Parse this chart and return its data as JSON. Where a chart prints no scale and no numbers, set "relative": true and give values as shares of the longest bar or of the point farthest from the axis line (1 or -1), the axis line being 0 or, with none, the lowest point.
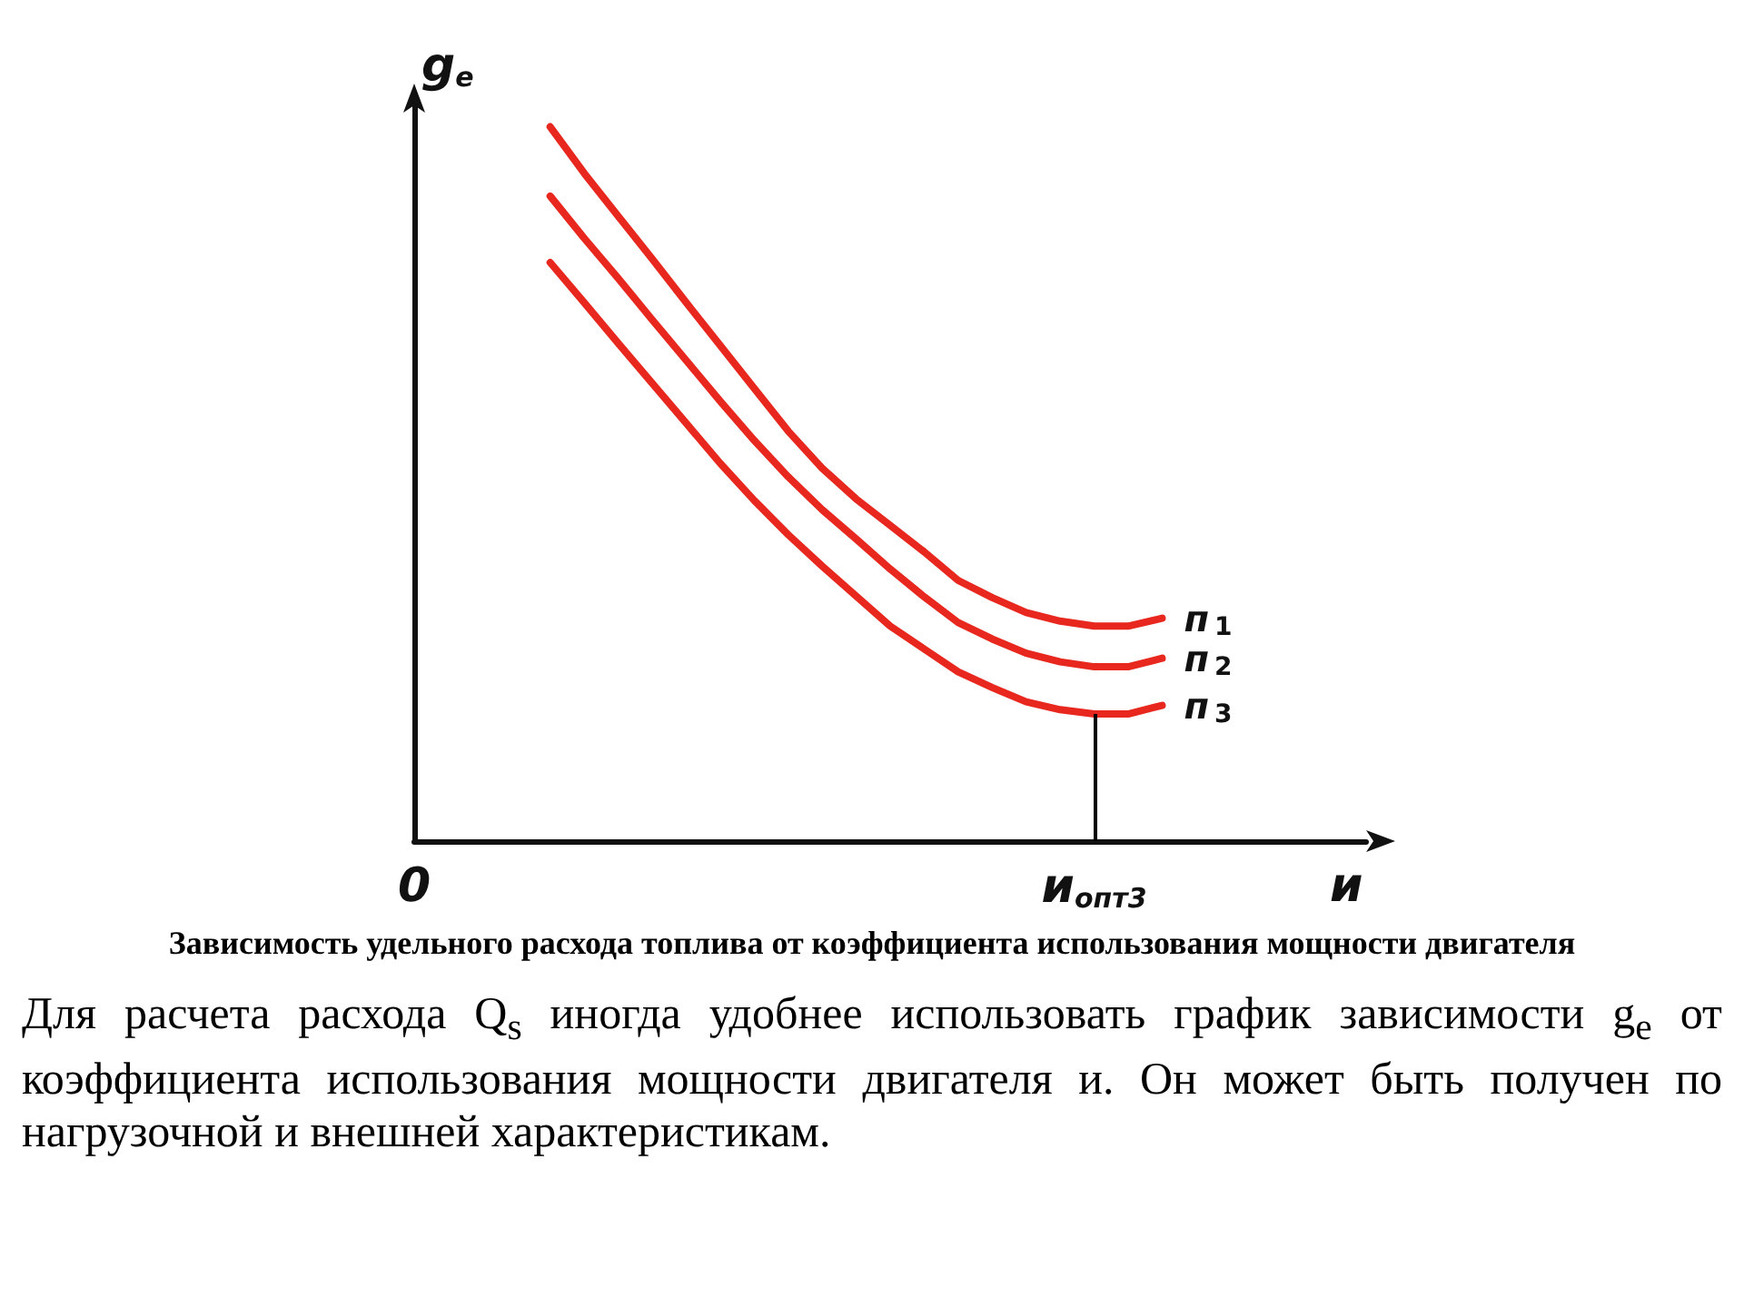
{
  "chart_data": {
    "type": "line",
    "relative": true,
    "title": "Зависимость удельного расхода топлива от коэффициента использования мощности двигателя",
    "xlabel": "и",
    "ylabel": "g$_{e}$",
    "categories": [
      "0",
      null,
      null,
      null,
      null,
      null,
      null,
      null,
      null,
      null,
      null,
      null,
      null,
      null,
      null,
      null,
      null,
      null,
      null,
      null,
      "и$_{опт3}$",
      null,
      null,
      null,
      null,
      null,
      null,
      null,
      null
    ],
    "series": [
      {
        "name": "п$_{1}$",
        "color": "#e8281e",
        "values": [
          null,
          null,
          null,
          null,
          1,
          0.935,
          0.875,
          0.815,
          0.754,
          0.694,
          0.634,
          0.574,
          0.522,
          0.479,
          0.442,
          0.405,
          0.365,
          0.341,
          0.32,
          0.308,
          0.301,
          0.301,
          0.312,
          null,
          null,
          null,
          null,
          null,
          null
        ]
      },
      {
        "name": "п$_{2}$",
        "color": "#e8281e",
        "values": [
          null,
          null,
          null,
          null,
          0.903,
          0.844,
          0.788,
          0.73,
          0.673,
          0.616,
          0.561,
          0.51,
          0.464,
          0.423,
          0.381,
          0.342,
          0.306,
          0.283,
          0.263,
          0.251,
          0.244,
          0.244,
          0.256,
          null,
          null,
          null,
          null,
          null,
          null
        ]
      },
      {
        "name": "п$_{3}$",
        "color": "#e8281e",
        "values": [
          null,
          null,
          null,
          null,
          0.81,
          0.754,
          0.697,
          0.641,
          0.585,
          0.529,
          0.477,
          0.429,
          0.385,
          0.343,
          0.301,
          0.269,
          0.237,
          0.215,
          0.195,
          0.184,
          0.178,
          0.178,
          0.19,
          null,
          null,
          null,
          null,
          null,
          null
        ]
      }
    ],
    "ref_lines": [
      {
        "axis": "x",
        "value": "и$_{опт3}$",
        "color": "#000000"
      }
    ],
    "annotations": [
      "Для расчета расхода Q$_{s}$ иногда удобнее использовать график зависимости g$_{e}$ от коэффициента использования мощности двигателя и. Он может быть получен по нагрузочной и внешней характеристикам."
    ],
    "legend": false,
    "grid": false,
    "marker": "none",
    "line_style": "solid"
  }
}
